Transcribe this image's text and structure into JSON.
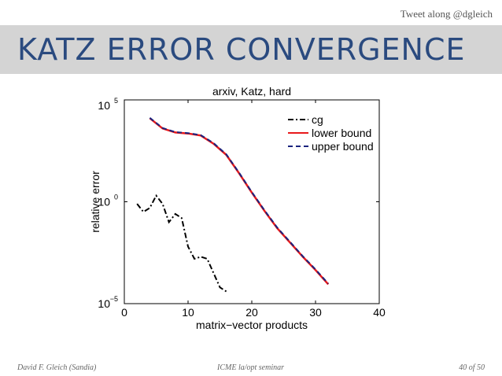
{
  "header": {
    "tweet": "Tweet along @dgleich",
    "title": "KATZ ERROR CONVERGENCE"
  },
  "footer": {
    "author": "David F. Gleich (Sandia)",
    "venue": "ICME la/opt seminar",
    "page": "40 of 50"
  },
  "chart_data": {
    "type": "line",
    "title": "arxiv, Katz, hard",
    "xlabel": "matrix−vector products",
    "ylabel": "relative error",
    "xlim": [
      0,
      40
    ],
    "ylim_log10": [
      -5,
      5
    ],
    "yscale": "log",
    "grid": false,
    "legend_position": "top-right",
    "xticks": [
      "0",
      "10",
      "20",
      "30",
      "40"
    ],
    "yticks": [
      {
        "base": "10",
        "exp": "−5",
        "log10": -5
      },
      {
        "base": "10",
        "exp": "0",
        "log10": 0
      },
      {
        "base": "10",
        "exp": "5",
        "log10": 5
      }
    ],
    "series": [
      {
        "name": "cg",
        "color": "#000000",
        "dash": "dashdot",
        "x": [
          2,
          3,
          4,
          5,
          6,
          7,
          8,
          9,
          10,
          11,
          12,
          13,
          14,
          15,
          16
        ],
        "log10y": [
          -0.1,
          -0.5,
          -0.3,
          0.3,
          -0.1,
          -1.0,
          -0.6,
          -0.8,
          -2.2,
          -2.8,
          -2.7,
          -2.8,
          -3.5,
          -4.2,
          -4.4
        ]
      },
      {
        "name": "lower bound",
        "color": "#e8191b",
        "dash": "solid",
        "x": [
          4,
          6,
          8,
          10,
          12,
          14,
          16,
          18,
          20,
          22,
          24,
          26,
          28,
          30,
          32
        ],
        "log10y": [
          4.1,
          3.6,
          3.4,
          3.35,
          3.25,
          2.85,
          2.3,
          1.4,
          0.45,
          -0.45,
          -1.3,
          -2.0,
          -2.7,
          -3.35,
          -4.05
        ]
      },
      {
        "name": "upper bound",
        "color": "#1a237e",
        "dash": "dashed",
        "x": [
          4,
          6,
          8,
          10,
          12,
          14,
          16,
          18,
          20,
          22,
          24,
          26,
          28,
          30,
          32
        ],
        "log10y": [
          4.12,
          3.62,
          3.42,
          3.37,
          3.27,
          2.88,
          2.33,
          1.43,
          0.48,
          -0.42,
          -1.27,
          -1.97,
          -2.67,
          -3.32,
          -4.02
        ]
      }
    ]
  }
}
